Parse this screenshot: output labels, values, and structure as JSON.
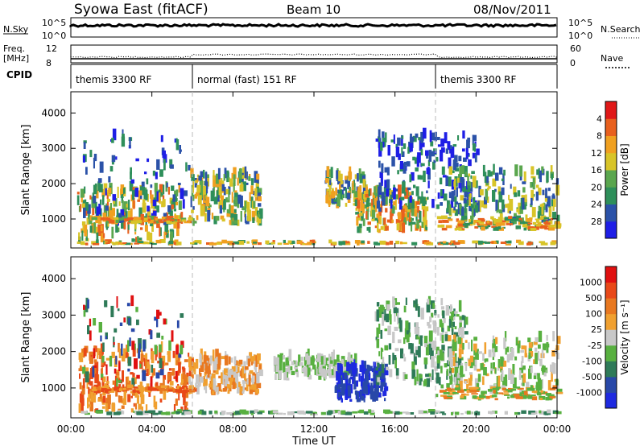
{
  "header": {
    "station": "Syowa East (fitACF)",
    "beam": "Beam 10",
    "date": "08/Nov/2011"
  },
  "strips": {
    "nsky_label": "N.Sky",
    "nsky_high": "10^5",
    "nsky_low": "10^0",
    "nsearch_label": "N.Search",
    "nsearch_high": "10^5",
    "nsearch_low": "10^0",
    "freq_label_1": "Freq.",
    "freq_label_2": "[MHz]",
    "freq_high": "12",
    "freq_low": "8",
    "nave_label": "Nave",
    "nave_high": "60",
    "nave_low": "0",
    "cpid_label": "CPID",
    "cpid_segments": [
      {
        "start_hour": 0,
        "end_hour": 6,
        "label": "themis 3300 RF"
      },
      {
        "start_hour": 6,
        "end_hour": 18,
        "label": "normal (fast) 151 RF"
      },
      {
        "start_hour": 18,
        "end_hour": 24,
        "label": "themis 3300 RF"
      }
    ]
  },
  "chart_data": [
    {
      "type": "heatmap",
      "panel": "power",
      "ylabel": "Slant Range [km]",
      "ylim": [
        180,
        4600
      ],
      "yticks": [
        "1000",
        "2000",
        "3000",
        "4000"
      ],
      "xlim_hours": [
        0,
        24
      ],
      "xticks": [
        "00:00",
        "04:00",
        "08:00",
        "12:00",
        "16:00",
        "20:00",
        "00:00"
      ],
      "colorbar": {
        "label": "Power [dB]",
        "ticks": [
          "4",
          "8",
          "12",
          "16",
          "20",
          "24",
          "28"
        ],
        "colors": [
          "#1e1ee6",
          "#2b52a8",
          "#2e8f5a",
          "#5aa64e",
          "#d8c428",
          "#f0a020",
          "#e8601e",
          "#e01818"
        ]
      },
      "scatter_regions": [
        {
          "h": [
            0.3,
            5.5
          ],
          "r": [
            300,
            1800
          ],
          "c": [
            2,
            3,
            4,
            5,
            6
          ],
          "n": 220
        },
        {
          "h": [
            0.5,
            5.8
          ],
          "r": [
            800,
            3300
          ],
          "c": [
            0,
            1,
            2
          ],
          "n": 90
        },
        {
          "h": [
            5.8,
            9.3
          ],
          "r": [
            800,
            2200
          ],
          "c": [
            1,
            2,
            3,
            4,
            5
          ],
          "n": 200
        },
        {
          "h": [
            12.5,
            14.5
          ],
          "r": [
            1300,
            2200
          ],
          "c": [
            1,
            2,
            3,
            4,
            5
          ],
          "n": 110
        },
        {
          "h": [
            14.0,
            17.5
          ],
          "r": [
            600,
            1700
          ],
          "c": [
            2,
            3,
            4,
            5,
            6
          ],
          "n": 180
        },
        {
          "h": [
            15.0,
            20.0
          ],
          "r": [
            1200,
            3300
          ],
          "c": [
            0,
            1,
            2
          ],
          "n": 200
        },
        {
          "h": [
            18.5,
            24.0
          ],
          "r": [
            800,
            2300
          ],
          "c": [
            1,
            2,
            3,
            4
          ],
          "n": 200
        }
      ],
      "band_regions": [
        {
          "h": [
            0.3,
            24.0
          ],
          "r": [
            250,
            320
          ],
          "c": [
            2,
            4,
            5,
            6
          ],
          "n": 160
        },
        {
          "h": [
            1.0,
            6.0
          ],
          "r": [
            850,
            1000
          ],
          "c": [
            3,
            4,
            5,
            6
          ],
          "n": 90
        },
        {
          "h": [
            18.0,
            24.0
          ],
          "r": [
            650,
            1000
          ],
          "c": [
            2,
            4,
            5,
            6
          ],
          "n": 120
        }
      ]
    },
    {
      "type": "heatmap",
      "panel": "velocity",
      "ylabel": "Slant Range [km]",
      "ylim": [
        180,
        4600
      ],
      "yticks": [
        "1000",
        "2000",
        "3000",
        "4000"
      ],
      "xlim_hours": [
        0,
        24
      ],
      "xticks": [
        "00:00",
        "04:00",
        "08:00",
        "12:00",
        "16:00",
        "20:00",
        "00:00"
      ],
      "xlabel": "Time UT",
      "colorbar": {
        "label": "Velocity [m s⁻¹]",
        "ticks": [
          "1000",
          "500",
          "100",
          "25",
          "-25",
          "-100",
          "-500",
          "-1000"
        ],
        "colors": [
          "#1e2ae0",
          "#2848a8",
          "#2e7a58",
          "#58b040",
          "#c8c8c8",
          "#f0a030",
          "#e87820",
          "#e84818",
          "#e01010"
        ]
      },
      "scatter_regions": [
        {
          "h": [
            0.3,
            6.0
          ],
          "r": [
            300,
            2000
          ],
          "c": [
            5,
            6,
            7
          ],
          "n": 250
        },
        {
          "h": [
            0.5,
            5.5
          ],
          "r": [
            900,
            3300
          ],
          "c": [
            1,
            2,
            3,
            8
          ],
          "n": 90
        },
        {
          "h": [
            5.8,
            9.3
          ],
          "r": [
            800,
            1800
          ],
          "c": [
            4,
            5,
            6
          ],
          "n": 200
        },
        {
          "h": [
            10.0,
            14.0
          ],
          "r": [
            1200,
            1800
          ],
          "c": [
            4,
            3
          ],
          "n": 160
        },
        {
          "h": [
            13.0,
            15.5
          ],
          "r": [
            600,
            1500
          ],
          "c": [
            0,
            1
          ],
          "n": 180
        },
        {
          "h": [
            15.0,
            19.5
          ],
          "r": [
            1000,
            3300
          ],
          "c": [
            2,
            3,
            4
          ],
          "n": 220
        },
        {
          "h": [
            18.5,
            24.0
          ],
          "r": [
            800,
            2300
          ],
          "c": [
            3,
            4,
            5
          ],
          "n": 200
        }
      ],
      "band_regions": [
        {
          "h": [
            0.3,
            24.0
          ],
          "r": [
            250,
            320
          ],
          "c": [
            2,
            3,
            4
          ],
          "n": 160
        },
        {
          "h": [
            1.0,
            6.0
          ],
          "r": [
            850,
            1000
          ],
          "c": [
            5,
            6,
            7
          ],
          "n": 90
        },
        {
          "h": [
            18.0,
            24.0
          ],
          "r": [
            650,
            1000
          ],
          "c": [
            3,
            5,
            6
          ],
          "n": 120
        }
      ]
    }
  ]
}
